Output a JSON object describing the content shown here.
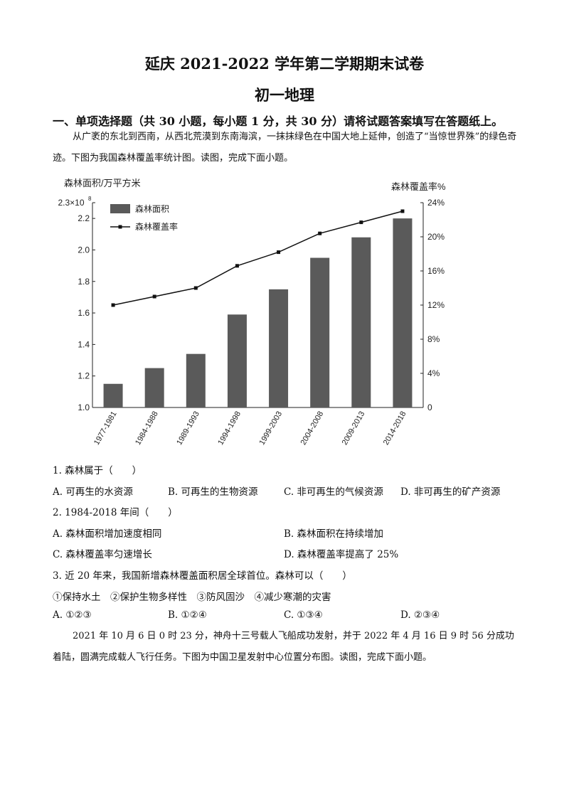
{
  "header": {
    "title": "延庆 2021-2022 学年第二学期期末试卷",
    "subtitle": "初一地理"
  },
  "section": {
    "heading": "一、单项选择题（共 30 小题，每小题 1 分，共 30 分）请将试题答案填写在答题纸上。"
  },
  "intro": "从广袤的东北到西南，从西北荒漠到东南海滨，一抹抹绿色在中国大地上延伸，创造了“当惊世界殊”的绿色奇迹。下图为我国森林覆盖率统计图。读图，完成下面小题。",
  "chart_data": {
    "type": "bar",
    "categories": [
      "1977-1981",
      "1984-1988",
      "1989-1993",
      "1994-1998",
      "1999-2003",
      "2004-2008",
      "2009-2013",
      "2014-2018"
    ],
    "series": [
      {
        "name": "森林面积",
        "type": "bar",
        "axis": "left",
        "values": [
          1.15,
          1.25,
          1.34,
          1.59,
          1.75,
          1.95,
          2.08,
          2.2
        ]
      },
      {
        "name": "森林覆盖率",
        "type": "line",
        "axis": "right",
        "values": [
          12.0,
          13.0,
          14.0,
          16.6,
          18.2,
          20.4,
          21.7,
          23.0
        ]
      }
    ],
    "ylabel": "森林面积/万平方米",
    "y2label": "森林覆盖率%",
    "ylim": [
      1.0,
      2.3
    ],
    "y2lim": [
      0,
      24
    ],
    "yticks": [
      "1.0",
      "1.2",
      "1.4",
      "1.6",
      "1.8",
      "2.0",
      "2.2"
    ],
    "ytop_label": "2.3×10",
    "ytop_exp": "8",
    "y2ticks": [
      "0",
      "4%",
      "8%",
      "12%",
      "16%",
      "20%",
      "24%"
    ],
    "legend": {
      "bar": "森林面积",
      "line": "森林覆盖率",
      "placement": "top-left"
    },
    "colors": {
      "bar": "#5a5a5a",
      "line": "#111111"
    }
  },
  "questions": {
    "q1": {
      "stem": "1. 森林属于（　　）",
      "options": [
        "A. 可再生的水资源",
        "B. 可再生的生物资源",
        "C. 非可再生的气候资源",
        "D. 非可再生的矿产资源"
      ]
    },
    "q2": {
      "stem": "2. 1984-2018 年间（　　）",
      "options": [
        "A. 森林面积增加速度相同",
        "B. 森林面积在持续增加",
        "C. 森林覆盖率匀速增长",
        "D. 森林覆盖率提高了 25%"
      ]
    },
    "q3": {
      "stem": "3. 近 20 年来，我国新增森林覆盖面积居全球首位。森林可以（　　）",
      "items": "①保持水土　②保护生物多样性　③防风固沙　④减少寒潮的灾害",
      "options": [
        "A. ①②③",
        "B. ①②④",
        "C. ①③④",
        "D. ②③④"
      ]
    }
  },
  "para2": "2021 年 10 月 6 日 0 时 23 分，神舟十三号载人飞船成功发射，并于 2022 年 4 月 16 日 9 时 56 分成功着陆，圆满完成载人飞行任务。下图为中国卫星发射中心位置分布图。读图，完成下面小题。"
}
